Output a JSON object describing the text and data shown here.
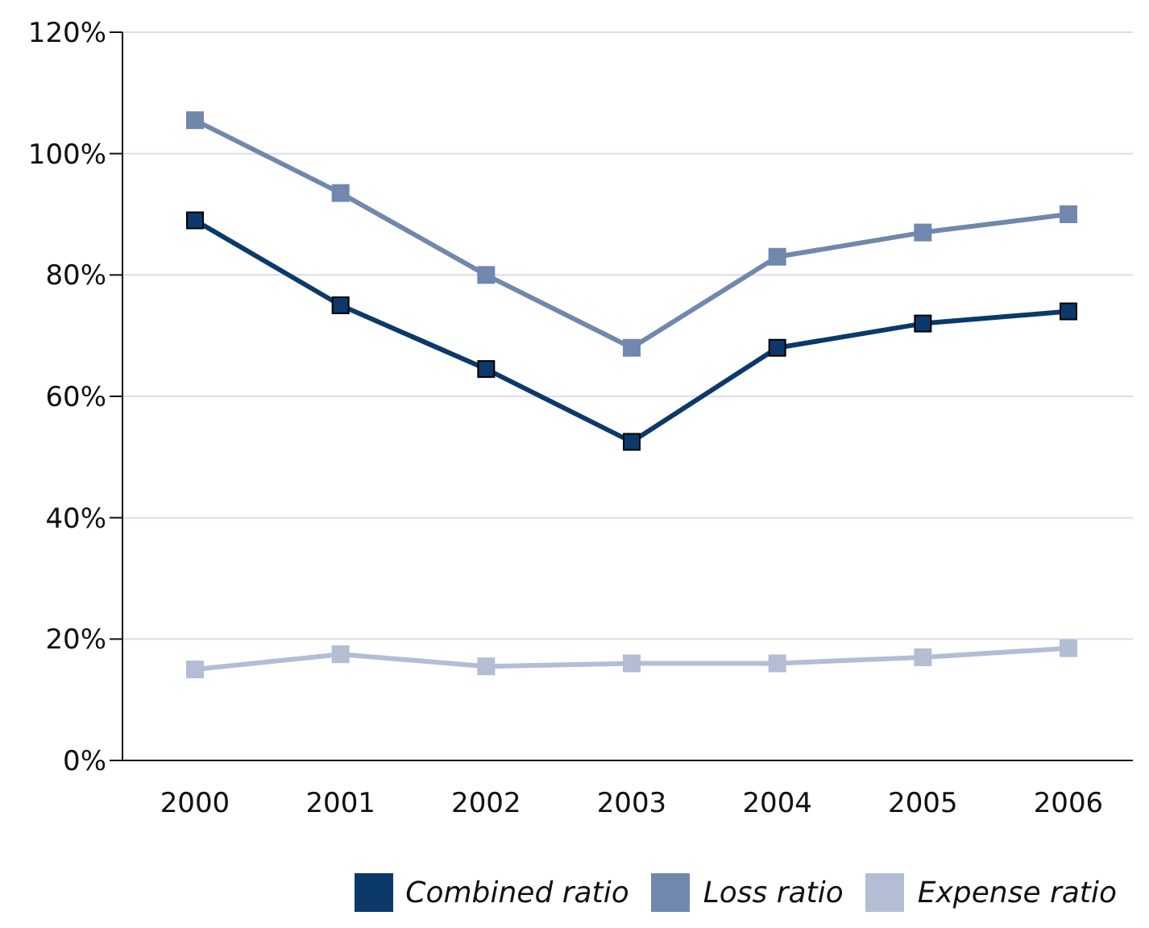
{
  "chart_data": {
    "type": "line",
    "categories": [
      "2000",
      "2001",
      "2002",
      "2003",
      "2004",
      "2005",
      "2006"
    ],
    "series": [
      {
        "name": "Combined ratio",
        "color": "#0b3a6a",
        "values": [
          89,
          75,
          64.5,
          52.5,
          68,
          72,
          74
        ]
      },
      {
        "name": "Loss ratio",
        "color": "#7088ae",
        "values": [
          105.5,
          93.5,
          80,
          68,
          83,
          87,
          90
        ]
      },
      {
        "name": "Expense ratio",
        "color": "#b3bed5",
        "values": [
          15,
          17.5,
          15.5,
          16,
          16,
          17,
          18.5
        ]
      }
    ],
    "ylim": [
      0,
      120
    ],
    "yticks": [
      {
        "value": 0,
        "label": "0%"
      },
      {
        "value": 20,
        "label": "20%"
      },
      {
        "value": 40,
        "label": "40%"
      },
      {
        "value": 60,
        "label": "60%"
      },
      {
        "value": 80,
        "label": "80%"
      },
      {
        "value": 100,
        "label": "100%"
      },
      {
        "value": 120,
        "label": "120%"
      }
    ],
    "grid": "y",
    "legend": "bottom",
    "marker": "square",
    "line_style": "solid"
  }
}
